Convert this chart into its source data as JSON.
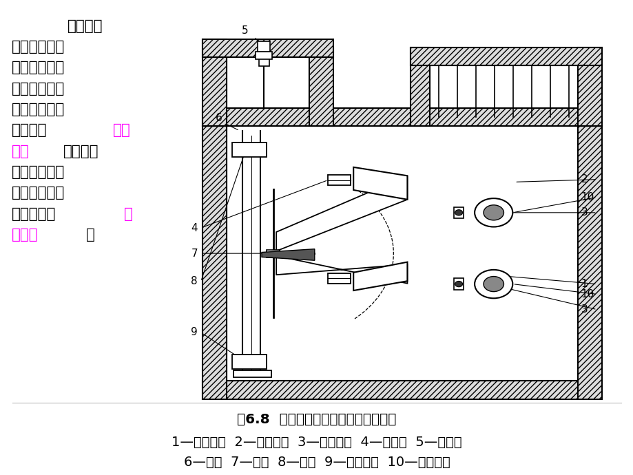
{
  "background_color": "#ffffff",
  "fig_width": 9.2,
  "fig_height": 6.9,
  "dpi": 100,
  "caption_line1": "图6.8  开口杯挡板式气体继电器结构图",
  "caption_line2": "1—下开口杯  2—上开口杯  3—干簧触点  4—平衡锤  5—放气阀",
  "caption_line3": "6—探针  7—支架  8—挡板  9—进油挡板  10—永久磁铁",
  "caption_fontsize": 14.5,
  "text_fontsize": 15.5,
  "label_fontsize": 11
}
